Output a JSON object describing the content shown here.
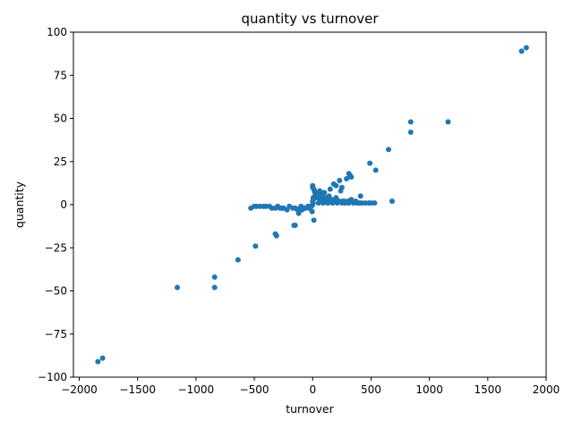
{
  "chart_data": {
    "type": "scatter",
    "title": "quantity vs turnover",
    "xlabel": "turnover",
    "ylabel": "quantity",
    "xlim": [
      -2050,
      2000
    ],
    "ylim": [
      -100,
      100
    ],
    "xticks": [
      -2000,
      -1500,
      -1000,
      -500,
      0,
      500,
      1000,
      1500,
      2000
    ],
    "xtick_labels": [
      "−2000",
      "−1500",
      "−1000",
      "−500",
      "0",
      "500",
      "1000",
      "1500",
      "2000"
    ],
    "yticks": [
      100,
      75,
      50,
      25,
      0,
      -25,
      -50,
      -75,
      -100
    ],
    "ytick_labels": [
      "100",
      "75",
      "50",
      "25",
      "0",
      "−25",
      "−50",
      "−75",
      "−100"
    ],
    "grid": false,
    "point_color": "#1f77b4",
    "series": [
      {
        "x": [
          -1840,
          -1800,
          1790,
          1830,
          -1160,
          1160,
          -840,
          -840,
          840,
          840,
          -640,
          650,
          -490,
          490,
          -320,
          -310,
          320,
          310,
          540,
          -160,
          -150,
          680,
          -120,
          -90,
          10,
          230,
          180,
          250,
          290,
          330,
          200,
          150,
          100,
          60,
          40,
          20,
          5,
          -10,
          -30,
          -60,
          -100,
          -150,
          -200,
          -250,
          -300,
          -350,
          -400,
          -450,
          -480,
          -500,
          -530,
          50,
          90,
          130,
          170,
          210,
          250,
          280,
          310,
          350,
          380,
          400,
          420,
          450,
          480,
          500,
          530,
          0,
          0,
          10,
          15,
          20,
          25,
          30,
          40,
          60,
          80,
          100,
          120,
          150,
          180,
          220,
          260,
          300,
          0,
          5,
          10,
          20,
          35,
          50,
          70,
          90,
          110,
          130,
          160,
          190,
          230,
          270,
          -20,
          -40,
          -70,
          -110,
          -130,
          -170,
          -220,
          -260,
          -280,
          -320,
          -370,
          -420,
          75,
          140,
          200,
          240,
          330,
          370,
          410,
          -5,
          0,
          3
        ],
        "y": [
          -91,
          -89,
          89,
          91,
          -48,
          48,
          -42,
          -48,
          48,
          42,
          -32,
          32,
          -24,
          24,
          -17,
          -18,
          17,
          18,
          20,
          -12,
          -12,
          2,
          -5,
          -3,
          -9,
          14,
          12,
          10,
          15,
          16,
          11,
          9,
          7,
          8,
          6,
          5,
          4,
          -1,
          -2,
          -2,
          -1,
          -2,
          -1,
          -2,
          -1,
          -2,
          -1,
          -1,
          -1,
          -1,
          -2,
          1,
          1,
          1,
          1,
          1,
          1,
          1,
          1,
          1,
          1,
          1,
          1,
          1,
          1,
          1,
          1,
          10,
          11,
          9,
          8,
          7,
          6,
          5,
          4,
          3,
          3,
          2,
          2,
          2,
          2,
          2,
          2,
          2,
          2,
          3,
          4,
          5,
          6,
          6,
          5,
          4,
          4,
          3,
          3,
          3,
          2,
          2,
          -1,
          -1,
          -2,
          -2,
          -3,
          -2,
          -3,
          -2,
          -2,
          -2,
          -1,
          -1,
          7,
          5,
          4,
          8,
          3,
          2,
          5,
          -4,
          0,
          1
        ]
      }
    ]
  }
}
